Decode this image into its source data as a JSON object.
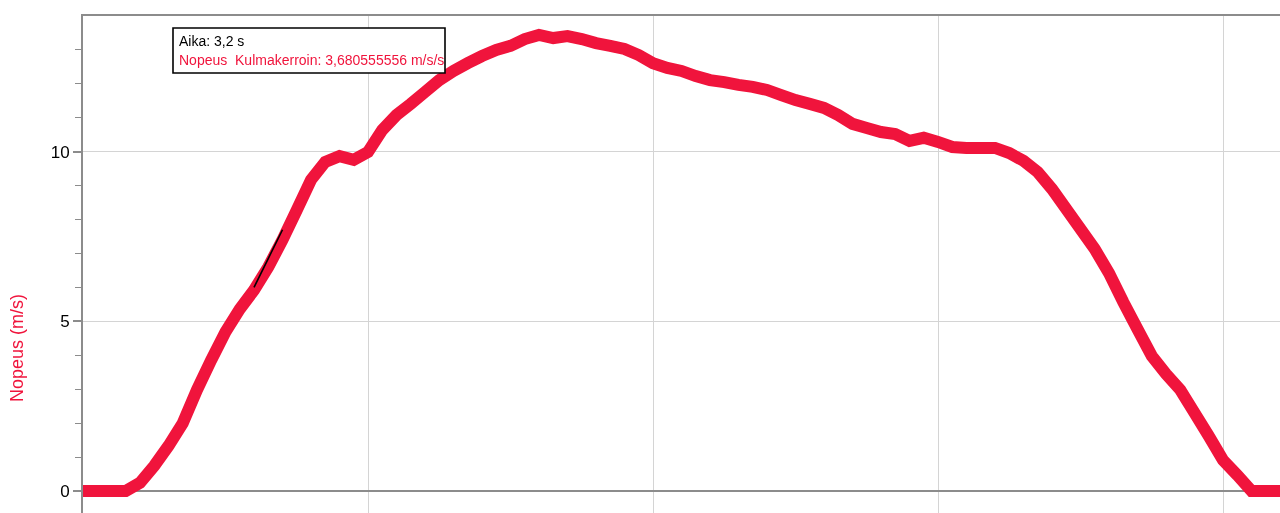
{
  "chart_data": {
    "type": "line",
    "categories": [
      null,
      null,
      null,
      null,
      null,
      null,
      null,
      null,
      null,
      null,
      null,
      null,
      null,
      null,
      null,
      null,
      null,
      null,
      null,
      null,
      null,
      null,
      null,
      null,
      null,
      null,
      null,
      null,
      null,
      null,
      null,
      null,
      null,
      null,
      null,
      null,
      null,
      null,
      null,
      null,
      null,
      null,
      null,
      null,
      null,
      null,
      null,
      null,
      null,
      null,
      null,
      null,
      null,
      null,
      null,
      null,
      null,
      null,
      null,
      null,
      null,
      null,
      null,
      null,
      null,
      null,
      null,
      null,
      null,
      null,
      null,
      null,
      null,
      null,
      null,
      null,
      null,
      null,
      null,
      null,
      null,
      null,
      null,
      null,
      null
    ],
    "ylabel": "Nopeus (m/s)",
    "annotations": [
      "Aika: 3,2 s",
      "Nopeus  Kulmakerroin: 3,680555556 m/s/s"
    ],
    "ylim": [
      -0.65,
      14
    ],
    "yticks": [
      0,
      {
        "value": 1,
        "label": null
      },
      {
        "value": 2,
        "label": null
      },
      {
        "value": 3,
        "label": null
      },
      {
        "value": 4,
        "label": null
      },
      5,
      {
        "value": 6,
        "label": null
      },
      {
        "value": 7,
        "label": null
      },
      {
        "value": 8,
        "label": null
      },
      {
        "value": 9,
        "label": null
      },
      10,
      {
        "value": 11,
        "label": null
      },
      {
        "value": 12,
        "label": null
      },
      {
        "value": 13,
        "label": null
      }
    ],
    "grid": true,
    "tick_labels": "y",
    "series": [
      {
        "color": "#f0143c",
        "values": [
          0,
          0,
          0,
          0,
          0.24,
          0.74,
          1.33,
          2.0,
          2.98,
          3.86,
          4.69,
          5.36,
          5.92,
          6.6,
          7.4,
          8.28,
          9.17,
          9.7,
          9.87,
          9.76,
          9.99,
          10.64,
          11.08,
          11.41,
          11.76,
          12.11,
          12.38,
          12.61,
          12.82,
          13.0,
          13.12,
          13.32,
          13.44,
          13.35,
          13.41,
          13.32,
          13.2,
          13.12,
          13.03,
          12.85,
          12.61,
          12.47,
          12.38,
          12.23,
          12.11,
          12.05,
          11.97,
          11.91,
          11.82,
          11.67,
          11.52,
          11.41,
          11.29,
          11.08,
          10.82,
          10.7,
          10.58,
          10.52,
          10.32,
          10.41,
          10.29,
          10.14,
          10.11,
          10.11,
          10.11,
          9.96,
          9.73,
          9.4,
          8.9,
          8.31,
          7.72,
          7.13,
          6.42,
          5.57,
          4.77,
          3.98,
          3.45,
          2.98,
          2.3,
          1.62,
          0.91,
          0.47,
          0,
          0,
          0
        ]
      },
      {
        "color": "#000000",
        "values": [
          null,
          null,
          null,
          null,
          null,
          null,
          null,
          null,
          null,
          null,
          null,
          null,
          6.0,
          6.85,
          7.7,
          null,
          null,
          null,
          null,
          null,
          null,
          null,
          null,
          null,
          null,
          null,
          null,
          null,
          null,
          null,
          null,
          null,
          null,
          null,
          null,
          null,
          null,
          null,
          null,
          null,
          null,
          null,
          null,
          null,
          null,
          null,
          null,
          null,
          null,
          null,
          null,
          null,
          null,
          null,
          null,
          null,
          null,
          null,
          null,
          null,
          null,
          null,
          null,
          null,
          null,
          null,
          null,
          null,
          null,
          null,
          null,
          null,
          null,
          null,
          null,
          null,
          null,
          null,
          null,
          null,
          null,
          null,
          null,
          null,
          null
        ]
      }
    ]
  }
}
